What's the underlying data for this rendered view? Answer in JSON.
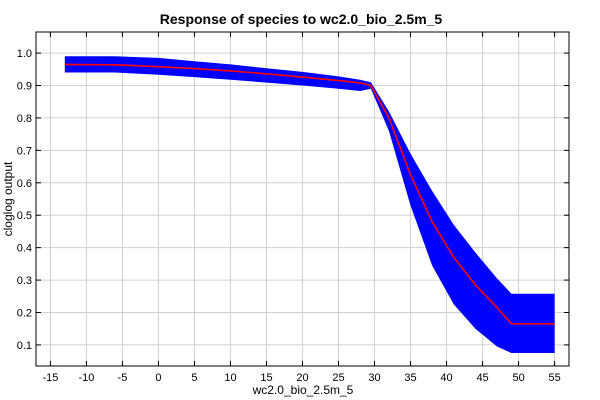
{
  "chart_data": {
    "type": "line",
    "title": "Response of species to wc2.0_bio_2.5m_5",
    "xlabel": "wc2.0_bio_2.5m_5",
    "ylabel": "cloglog output",
    "xlim": [
      -17,
      57
    ],
    "ylim": [
      0.035,
      1.065
    ],
    "x_ticks": [
      -15,
      -10,
      -5,
      0,
      5,
      10,
      15,
      20,
      25,
      30,
      35,
      40,
      45,
      50,
      55
    ],
    "y_ticks": [
      0.1,
      0.2,
      0.3,
      0.4,
      0.5,
      0.6,
      0.7,
      0.8,
      0.9,
      1.0
    ],
    "y_tick_labels": [
      "0.1",
      "0.2",
      "0.3",
      "0.4",
      "0.5",
      "0.6",
      "0.7",
      "0.8",
      "0.9",
      "1.0"
    ],
    "grid": true,
    "series": [
      {
        "role": "mean",
        "color": "#ff0000",
        "x": [
          -13,
          -6,
          0,
          5,
          10,
          15,
          20,
          25,
          28,
          29.5,
          32,
          35,
          38,
          41,
          44,
          47,
          49,
          55
        ],
        "values": [
          0.965,
          0.964,
          0.958,
          0.952,
          0.945,
          0.936,
          0.926,
          0.915,
          0.908,
          0.9,
          0.8,
          0.625,
          0.48,
          0.37,
          0.285,
          0.215,
          0.165,
          0.165
        ]
      }
    ],
    "band": {
      "color": "#0000ff",
      "x": [
        -13,
        -6,
        0,
        5,
        10,
        15,
        20,
        25,
        28,
        29.5,
        32,
        35,
        38,
        41,
        44,
        47,
        49,
        55
      ],
      "upper": [
        0.99,
        0.99,
        0.985,
        0.975,
        0.965,
        0.953,
        0.942,
        0.928,
        0.918,
        0.91,
        0.82,
        0.69,
        0.575,
        0.47,
        0.385,
        0.305,
        0.258,
        0.258
      ],
      "lower": [
        0.94,
        0.94,
        0.933,
        0.926,
        0.918,
        0.909,
        0.9,
        0.89,
        0.883,
        0.89,
        0.76,
        0.53,
        0.345,
        0.225,
        0.15,
        0.095,
        0.075,
        0.075
      ]
    }
  }
}
